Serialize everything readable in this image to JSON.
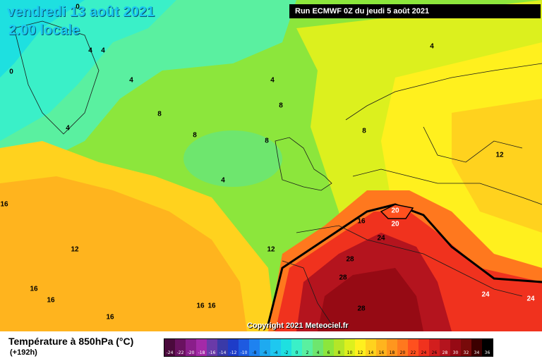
{
  "header": {
    "date": "vendredi 13 août 2021",
    "time": "2.00 locale",
    "run": "Run ECMWF 0Z du jeudi 5 août 2021"
  },
  "copyright": "Copyright 2021 Meteociel.fr",
  "legend": {
    "title": "Température à 850hPa (°C)",
    "subtitle": "(+192h)",
    "scale": [
      {
        "v": "-24",
        "c": "#4a0a3c"
      },
      {
        "v": "-22",
        "c": "#6a1260"
      },
      {
        "v": "-20",
        "c": "#8a1e8a"
      },
      {
        "v": "-18",
        "c": "#a42aa8"
      },
      {
        "v": "-16",
        "c": "#6a3aa8"
      },
      {
        "v": "-14",
        "c": "#3a3aa8"
      },
      {
        "v": "-12",
        "c": "#1e3cc8"
      },
      {
        "v": "-10",
        "c": "#1e5ae0"
      },
      {
        "v": "-8",
        "c": "#1e82f0"
      },
      {
        "v": "-6",
        "c": "#1eaaf0"
      },
      {
        "v": "-4",
        "c": "#1ec8f0"
      },
      {
        "v": "-2",
        "c": "#1ee0e0"
      },
      {
        "v": "0",
        "c": "#3af0c8"
      },
      {
        "v": "2",
        "c": "#5af0a0"
      },
      {
        "v": "4",
        "c": "#6ee66e"
      },
      {
        "v": "6",
        "c": "#8ce63c"
      },
      {
        "v": "8",
        "c": "#b4e628"
      },
      {
        "v": "10",
        "c": "#dcf01e"
      },
      {
        "v": "12",
        "c": "#fff01e"
      },
      {
        "v": "14",
        "c": "#ffd21e"
      },
      {
        "v": "16",
        "c": "#ffb41e"
      },
      {
        "v": "18",
        "c": "#ff961e"
      },
      {
        "v": "20",
        "c": "#ff781e"
      },
      {
        "v": "22",
        "c": "#ff501e"
      },
      {
        "v": "24",
        "c": "#f0321e"
      },
      {
        "v": "26",
        "c": "#d21e1e"
      },
      {
        "v": "28",
        "c": "#b4141e"
      },
      {
        "v": "30",
        "c": "#960a14"
      },
      {
        "v": "32",
        "c": "#780a0a"
      },
      {
        "v": "34",
        "c": "#3c0000"
      },
      {
        "v": "36",
        "c": "#000000"
      }
    ]
  },
  "contour_labels": [
    "0",
    "4",
    "4",
    "4",
    "0",
    "4",
    "4",
    "4",
    "8",
    "8",
    "8",
    "4",
    "8",
    "4",
    "8",
    "12",
    "12",
    "16",
    "20",
    "20",
    "24",
    "28",
    "28",
    "28",
    "24",
    "24",
    "12",
    "12",
    "16",
    "16",
    "16",
    "16",
    "16",
    "16"
  ]
}
